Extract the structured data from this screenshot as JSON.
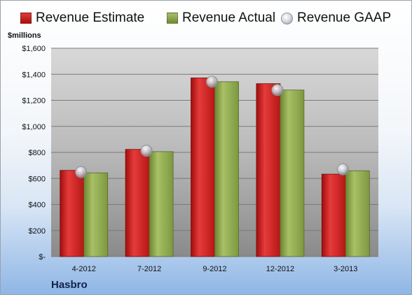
{
  "chart_data": {
    "type": "bar",
    "unit_label": "$millions",
    "company": "Hasbro",
    "categories": [
      "4-2012",
      "7-2012",
      "9-2012",
      "12-2012",
      "3-2013"
    ],
    "series": [
      {
        "name": "Revenue Estimate",
        "kind": "bar",
        "color": "#cc1f1f",
        "values": [
          662,
          823,
          1372,
          1328,
          633
        ]
      },
      {
        "name": "Revenue Actual",
        "kind": "bar",
        "color": "#8ea84f",
        "values": [
          643,
          806,
          1343,
          1279,
          659
        ]
      },
      {
        "name": "Revenue GAAP",
        "kind": "marker",
        "color": "#b8bdc3",
        "values": [
          649,
          813,
          1343,
          1279,
          670
        ]
      }
    ],
    "ylim": [
      0,
      1600
    ],
    "y_ticks": [
      {
        "value": 0,
        "label": "$-"
      },
      {
        "value": 200,
        "label": "$200"
      },
      {
        "value": 400,
        "label": "$400"
      },
      {
        "value": 600,
        "label": "$600"
      },
      {
        "value": 800,
        "label": "$800"
      },
      {
        "value": 1000,
        "label": "$1,000"
      },
      {
        "value": 1200,
        "label": "$1,200"
      },
      {
        "value": 1400,
        "label": "$1,400"
      },
      {
        "value": 1600,
        "label": "$1,600"
      }
    ],
    "grid": true,
    "legend_position": "top"
  }
}
